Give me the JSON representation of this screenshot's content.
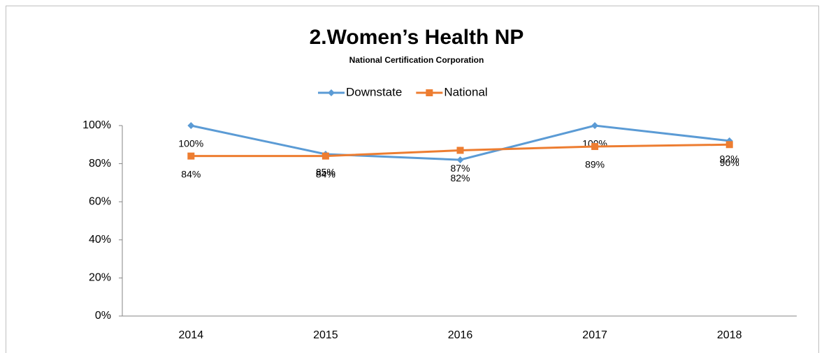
{
  "chart_data": {
    "type": "line",
    "title": "2.Women’s Health NP",
    "subtitle": "National Certification Corporation",
    "categories": [
      "2014",
      "2015",
      "2016",
      "2017",
      "2018"
    ],
    "series": [
      {
        "name": "Downstate",
        "color": "#5b9bd5",
        "marker": "diamond",
        "values": [
          100,
          85,
          82,
          100,
          92
        ],
        "value_labels": [
          "100%",
          "85%",
          "82%",
          "100%",
          "92%"
        ]
      },
      {
        "name": "National",
        "color": "#ed7d31",
        "marker": "square",
        "values": [
          84,
          84,
          87,
          89,
          90
        ],
        "value_labels": [
          "84%",
          "84%",
          "87%",
          "89%",
          "90%"
        ]
      }
    ],
    "ylim": [
      0,
      100
    ],
    "yticks": [
      {
        "value": 0,
        "label": "0%"
      },
      {
        "value": 20,
        "label": "20%"
      },
      {
        "value": 40,
        "label": "40%"
      },
      {
        "value": 60,
        "label": "60%"
      },
      {
        "value": 80,
        "label": "80%"
      },
      {
        "value": 100,
        "label": "100%"
      }
    ],
    "grid": false,
    "legend": "top"
  }
}
